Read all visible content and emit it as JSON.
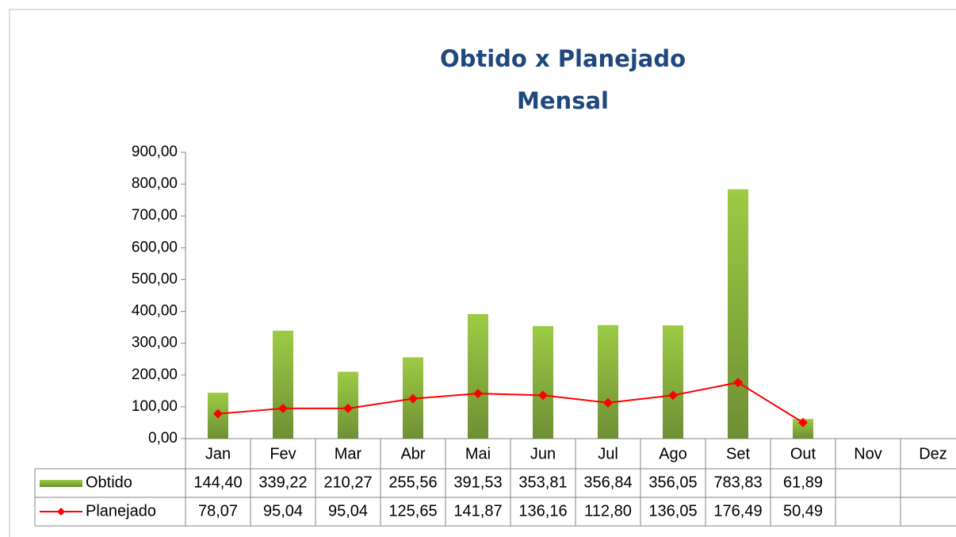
{
  "chart_data": {
    "type": "bar",
    "title": [
      "Obtido x Planejado",
      "Mensal"
    ],
    "categories": [
      "Jan",
      "Fev",
      "Mar",
      "Abr",
      "Mai",
      "Jun",
      "Jul",
      "Ago",
      "Set",
      "Out",
      "Nov",
      "Dez"
    ],
    "series": [
      {
        "name": "Obtido",
        "type": "bar",
        "color": "#8cb83c",
        "values": [
          144.4,
          339.22,
          210.27,
          255.56,
          391.53,
          353.81,
          356.84,
          356.05,
          783.83,
          61.89,
          null,
          null
        ],
        "value_labels": [
          "144,40",
          "339,22",
          "210,27",
          "255,56",
          "391,53",
          "353,81",
          "356,84",
          "356,05",
          "783,83",
          "61,89",
          null,
          null
        ]
      },
      {
        "name": "Planejado",
        "type": "line",
        "color": "#ff0000",
        "values": [
          78.07,
          95.04,
          95.04,
          125.65,
          141.87,
          136.16,
          112.8,
          136.05,
          176.49,
          50.49,
          null,
          null
        ],
        "value_labels": [
          "78,07",
          "95,04",
          "95,04",
          "125,65",
          "141,87",
          "136,16",
          "112,80",
          "136,05",
          "176,49",
          "50,49",
          null,
          null
        ]
      }
    ],
    "ylim": [
      0,
      900
    ],
    "yticks": [
      {
        "value": 0,
        "label": "0,00"
      },
      {
        "value": 100,
        "label": "100,00"
      },
      {
        "value": 200,
        "label": "200,00"
      },
      {
        "value": 300,
        "label": "300,00"
      },
      {
        "value": 400,
        "label": "400,00"
      },
      {
        "value": 500,
        "label": "500,00"
      },
      {
        "value": 600,
        "label": "600,00"
      },
      {
        "value": 700,
        "label": "700,00"
      },
      {
        "value": 800,
        "label": "800,00"
      },
      {
        "value": 900,
        "label": "900,00"
      }
    ],
    "grid": false,
    "data_table": true
  }
}
